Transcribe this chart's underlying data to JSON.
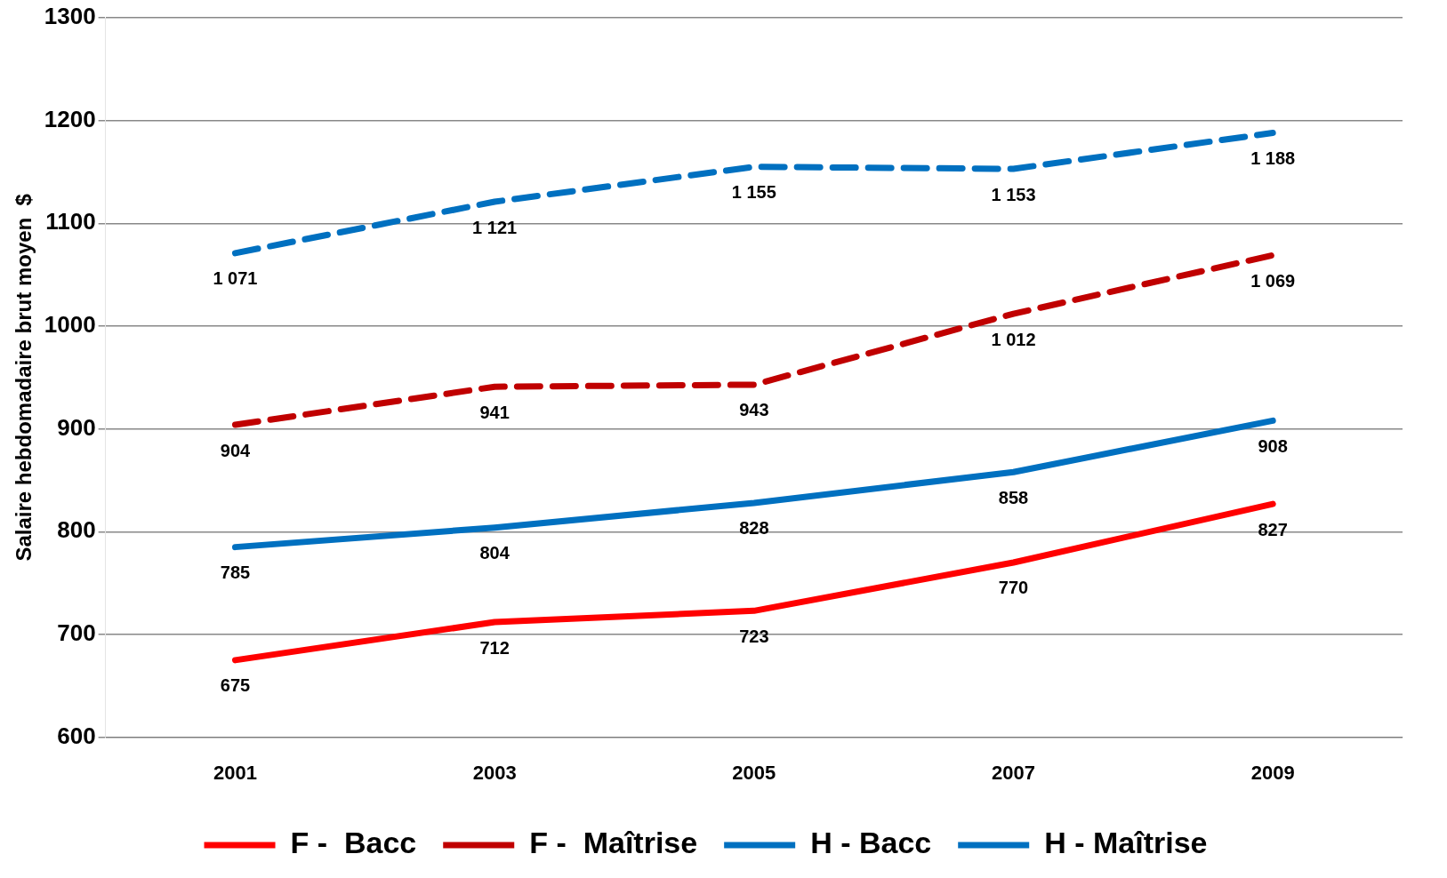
{
  "chart_data": {
    "type": "line",
    "ylabel": "Salaire hebdomadaire brut moyen  $",
    "categories": [
      "2001",
      "2003",
      "2005",
      "2007",
      "2009"
    ],
    "ylim": [
      600,
      1300
    ],
    "yticks": [
      600,
      700,
      800,
      900,
      1000,
      1100,
      1200,
      1300
    ],
    "grid": "y",
    "legend": "bottom",
    "marker": "none",
    "series": [
      {
        "name": "F -  Bacc",
        "color": "#ff0000",
        "line_style": "solid",
        "values": [
          675,
          712,
          723,
          770,
          827
        ],
        "value_labels": [
          "675",
          "712",
          "723",
          "770",
          "827"
        ]
      },
      {
        "name": "F -  Maîtrise",
        "color": "#c00000",
        "line_style": "dashed",
        "values": [
          904,
          941,
          943,
          1012,
          1069
        ],
        "value_labels": [
          "904",
          "941",
          "943",
          "1 012",
          "1 069"
        ]
      },
      {
        "name": "H - Bacc",
        "color": "#0070c0",
        "line_style": "solid",
        "values": [
          785,
          804,
          828,
          858,
          908
        ],
        "value_labels": [
          "785",
          "804",
          "828",
          "858",
          "908"
        ]
      },
      {
        "name": "H - Maîtrise",
        "color": "#0070c0",
        "line_style": "dashed",
        "values": [
          1071,
          1121,
          1155,
          1153,
          1188
        ],
        "value_labels": [
          "1 071",
          "1 121",
          "1 155",
          "1 153",
          "1 188"
        ]
      }
    ]
  }
}
